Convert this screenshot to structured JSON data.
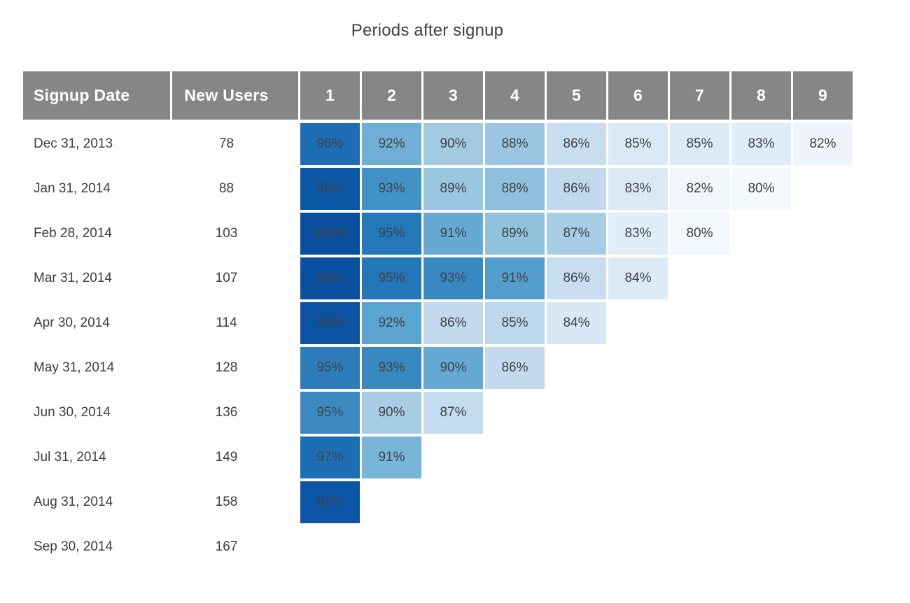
{
  "title": "Periods after signup",
  "columns": {
    "signup_date": "Signup Date",
    "new_users": "New Users",
    "periods": [
      "1",
      "2",
      "3",
      "4",
      "5",
      "6",
      "7",
      "8",
      "9"
    ]
  },
  "colors": {
    "background": "#ffffff",
    "header_bg": "#868686",
    "header_text": "#ffffff",
    "body_text": "#3d3d3d",
    "cell_text": "#3d4349",
    "scale_min_80pct": "#f7fbff",
    "scale_max_100pct": "#08519c"
  },
  "rows": [
    {
      "date": "Dec 31, 2013",
      "new_users": "78",
      "cells": [
        {
          "value": "96%",
          "color": "#1e6cb3"
        },
        {
          "value": "92%",
          "color": "#6fafd6"
        },
        {
          "value": "90%",
          "color": "#a2c9e2"
        },
        {
          "value": "88%",
          "color": "#9bc5e0"
        },
        {
          "value": "86%",
          "color": "#c8ddef"
        },
        {
          "value": "85%",
          "color": "#dbe8f5"
        },
        {
          "value": "85%",
          "color": "#dceaf6"
        },
        {
          "value": "83%",
          "color": "#e0ecf7"
        },
        {
          "value": "82%",
          "color": "#eff5fb"
        }
      ]
    },
    {
      "date": "Jan 31, 2014",
      "new_users": "88",
      "cells": [
        {
          "value": "98%",
          "color": "#0c58a5"
        },
        {
          "value": "93%",
          "color": "#4392c6"
        },
        {
          "value": "89%",
          "color": "#9ac6e0"
        },
        {
          "value": "88%",
          "color": "#8ec0dd"
        },
        {
          "value": "86%",
          "color": "#c2d9ed"
        },
        {
          "value": "83%",
          "color": "#dce9f5"
        },
        {
          "value": "82%",
          "color": "#f0f6fc"
        },
        {
          "value": "80%",
          "color": "#f4f9fd"
        }
      ]
    },
    {
      "date": "Feb 28, 2014",
      "new_users": "103",
      "cells": [
        {
          "value": "100%",
          "color": "#0a4f9d"
        },
        {
          "value": "95%",
          "color": "#2478b9"
        },
        {
          "value": "91%",
          "color": "#66aad3"
        },
        {
          "value": "89%",
          "color": "#90c2de"
        },
        {
          "value": "87%",
          "color": "#a6cde5"
        },
        {
          "value": "83%",
          "color": "#e0ecf7"
        },
        {
          "value": "80%",
          "color": "#f2f8fd"
        }
      ]
    },
    {
      "date": "Mar 31, 2014",
      "new_users": "107",
      "cells": [
        {
          "value": "99%",
          "color": "#0a509e"
        },
        {
          "value": "95%",
          "color": "#2376b8"
        },
        {
          "value": "93%",
          "color": "#3889c1"
        },
        {
          "value": "91%",
          "color": "#549ecd"
        },
        {
          "value": "86%",
          "color": "#c8def0"
        },
        {
          "value": "84%",
          "color": "#dceaf6"
        }
      ]
    },
    {
      "date": "Apr 30, 2014",
      "new_users": "114",
      "cells": [
        {
          "value": "98%",
          "color": "#0b52a0"
        },
        {
          "value": "92%",
          "color": "#5ba4d0"
        },
        {
          "value": "86%",
          "color": "#c3daee"
        },
        {
          "value": "85%",
          "color": "#bdd7ec"
        },
        {
          "value": "84%",
          "color": "#d9e8f5"
        }
      ]
    },
    {
      "date": "May 31, 2014",
      "new_users": "128",
      "cells": [
        {
          "value": "95%",
          "color": "#2e7cba"
        },
        {
          "value": "93%",
          "color": "#3a88c0"
        },
        {
          "value": "90%",
          "color": "#64a9d3"
        },
        {
          "value": "86%",
          "color": "#c4daee"
        }
      ]
    },
    {
      "date": "Jun 30, 2014",
      "new_users": "136",
      "cells": [
        {
          "value": "95%",
          "color": "#3d8ac1"
        },
        {
          "value": "90%",
          "color": "#a7cce4"
        },
        {
          "value": "87%",
          "color": "#c4dcef"
        }
      ]
    },
    {
      "date": "Jul 31, 2014",
      "new_users": "149",
      "cells": [
        {
          "value": "97%",
          "color": "#1d6fb5"
        },
        {
          "value": "91%",
          "color": "#79b4d9"
        }
      ]
    },
    {
      "date": "Aug 31, 2014",
      "new_users": "158",
      "cells": [
        {
          "value": "97%",
          "color": "#0c55a4"
        }
      ]
    },
    {
      "date": "Sep 30, 2014",
      "new_users": "167",
      "cells": []
    }
  ],
  "chart_data": {
    "type": "heatmap",
    "title": "Periods after signup",
    "row_axis_label": "Signup Date",
    "value_column_label": "New Users",
    "columns": [
      1,
      2,
      3,
      4,
      5,
      6,
      7,
      8,
      9
    ],
    "rows": [
      "Dec 31, 2013",
      "Jan 31, 2014",
      "Feb 28, 2014",
      "Mar 31, 2014",
      "Apr 30, 2014",
      "May 31, 2014",
      "Jun 30, 2014",
      "Jul 31, 2014",
      "Aug 31, 2014",
      "Sep 30, 2014"
    ],
    "new_users": [
      78,
      88,
      103,
      107,
      114,
      128,
      136,
      149,
      158,
      167
    ],
    "retention_pct": [
      [
        96,
        92,
        90,
        88,
        86,
        85,
        85,
        83,
        82
      ],
      [
        98,
        93,
        89,
        88,
        86,
        83,
        82,
        80
      ],
      [
        100,
        95,
        91,
        89,
        87,
        83,
        80
      ],
      [
        99,
        95,
        93,
        91,
        86,
        84
      ],
      [
        98,
        92,
        86,
        85,
        84
      ],
      [
        95,
        93,
        90,
        86
      ],
      [
        95,
        90,
        87
      ],
      [
        97,
        91
      ],
      [
        97
      ],
      []
    ],
    "colorscale": {
      "low": "#f7fbff",
      "high": "#08519c",
      "value_domain_pct": [
        80,
        100
      ]
    },
    "grid": false,
    "legend": false
  }
}
